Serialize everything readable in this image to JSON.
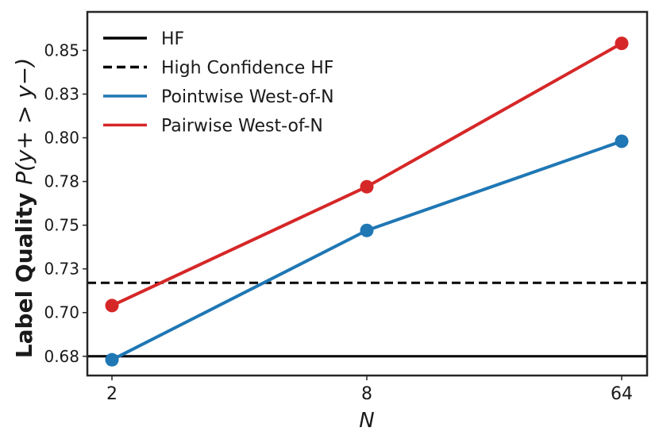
{
  "chart_data": {
    "type": "line",
    "xlabel": "N",
    "ylabel_prefix": "Label Quality ",
    "ylabel_math": "P(y+ > y−)",
    "categories": [
      "2",
      "8",
      "64"
    ],
    "yticks": [
      0.675,
      0.7,
      0.725,
      0.75,
      0.775,
      0.8,
      0.825,
      0.85
    ],
    "ytick_labels": [
      "0.68",
      "0.70",
      "0.73",
      "0.75",
      "0.78",
      "0.80",
      "0.83",
      "0.85"
    ],
    "ylim": [
      0.664,
      0.872
    ],
    "grid": false,
    "legend_position": "top-left",
    "series": [
      {
        "name": "Pointwise West-of-N",
        "color": "#1f77b4",
        "values": [
          0.673,
          0.747,
          0.798
        ]
      },
      {
        "name": "Pairwise West-of-N",
        "color": "#d62728",
        "values": [
          0.704,
          0.772,
          0.854
        ]
      }
    ],
    "hlines": [
      {
        "name": "HF",
        "value": 0.675,
        "style": "solid",
        "color": "#000000"
      },
      {
        "name": "High Confidence HF",
        "value": 0.717,
        "style": "dashed",
        "color": "#000000"
      }
    ],
    "legend": [
      {
        "label": "HF",
        "style": "solid",
        "color": "#000000"
      },
      {
        "label": "High Confidence HF",
        "style": "dashed",
        "color": "#000000"
      },
      {
        "label": "Pointwise West-of-N",
        "style": "solid",
        "color": "#1f77b4"
      },
      {
        "label": "Pairwise West-of-N",
        "style": "solid",
        "color": "#d62728"
      }
    ]
  }
}
